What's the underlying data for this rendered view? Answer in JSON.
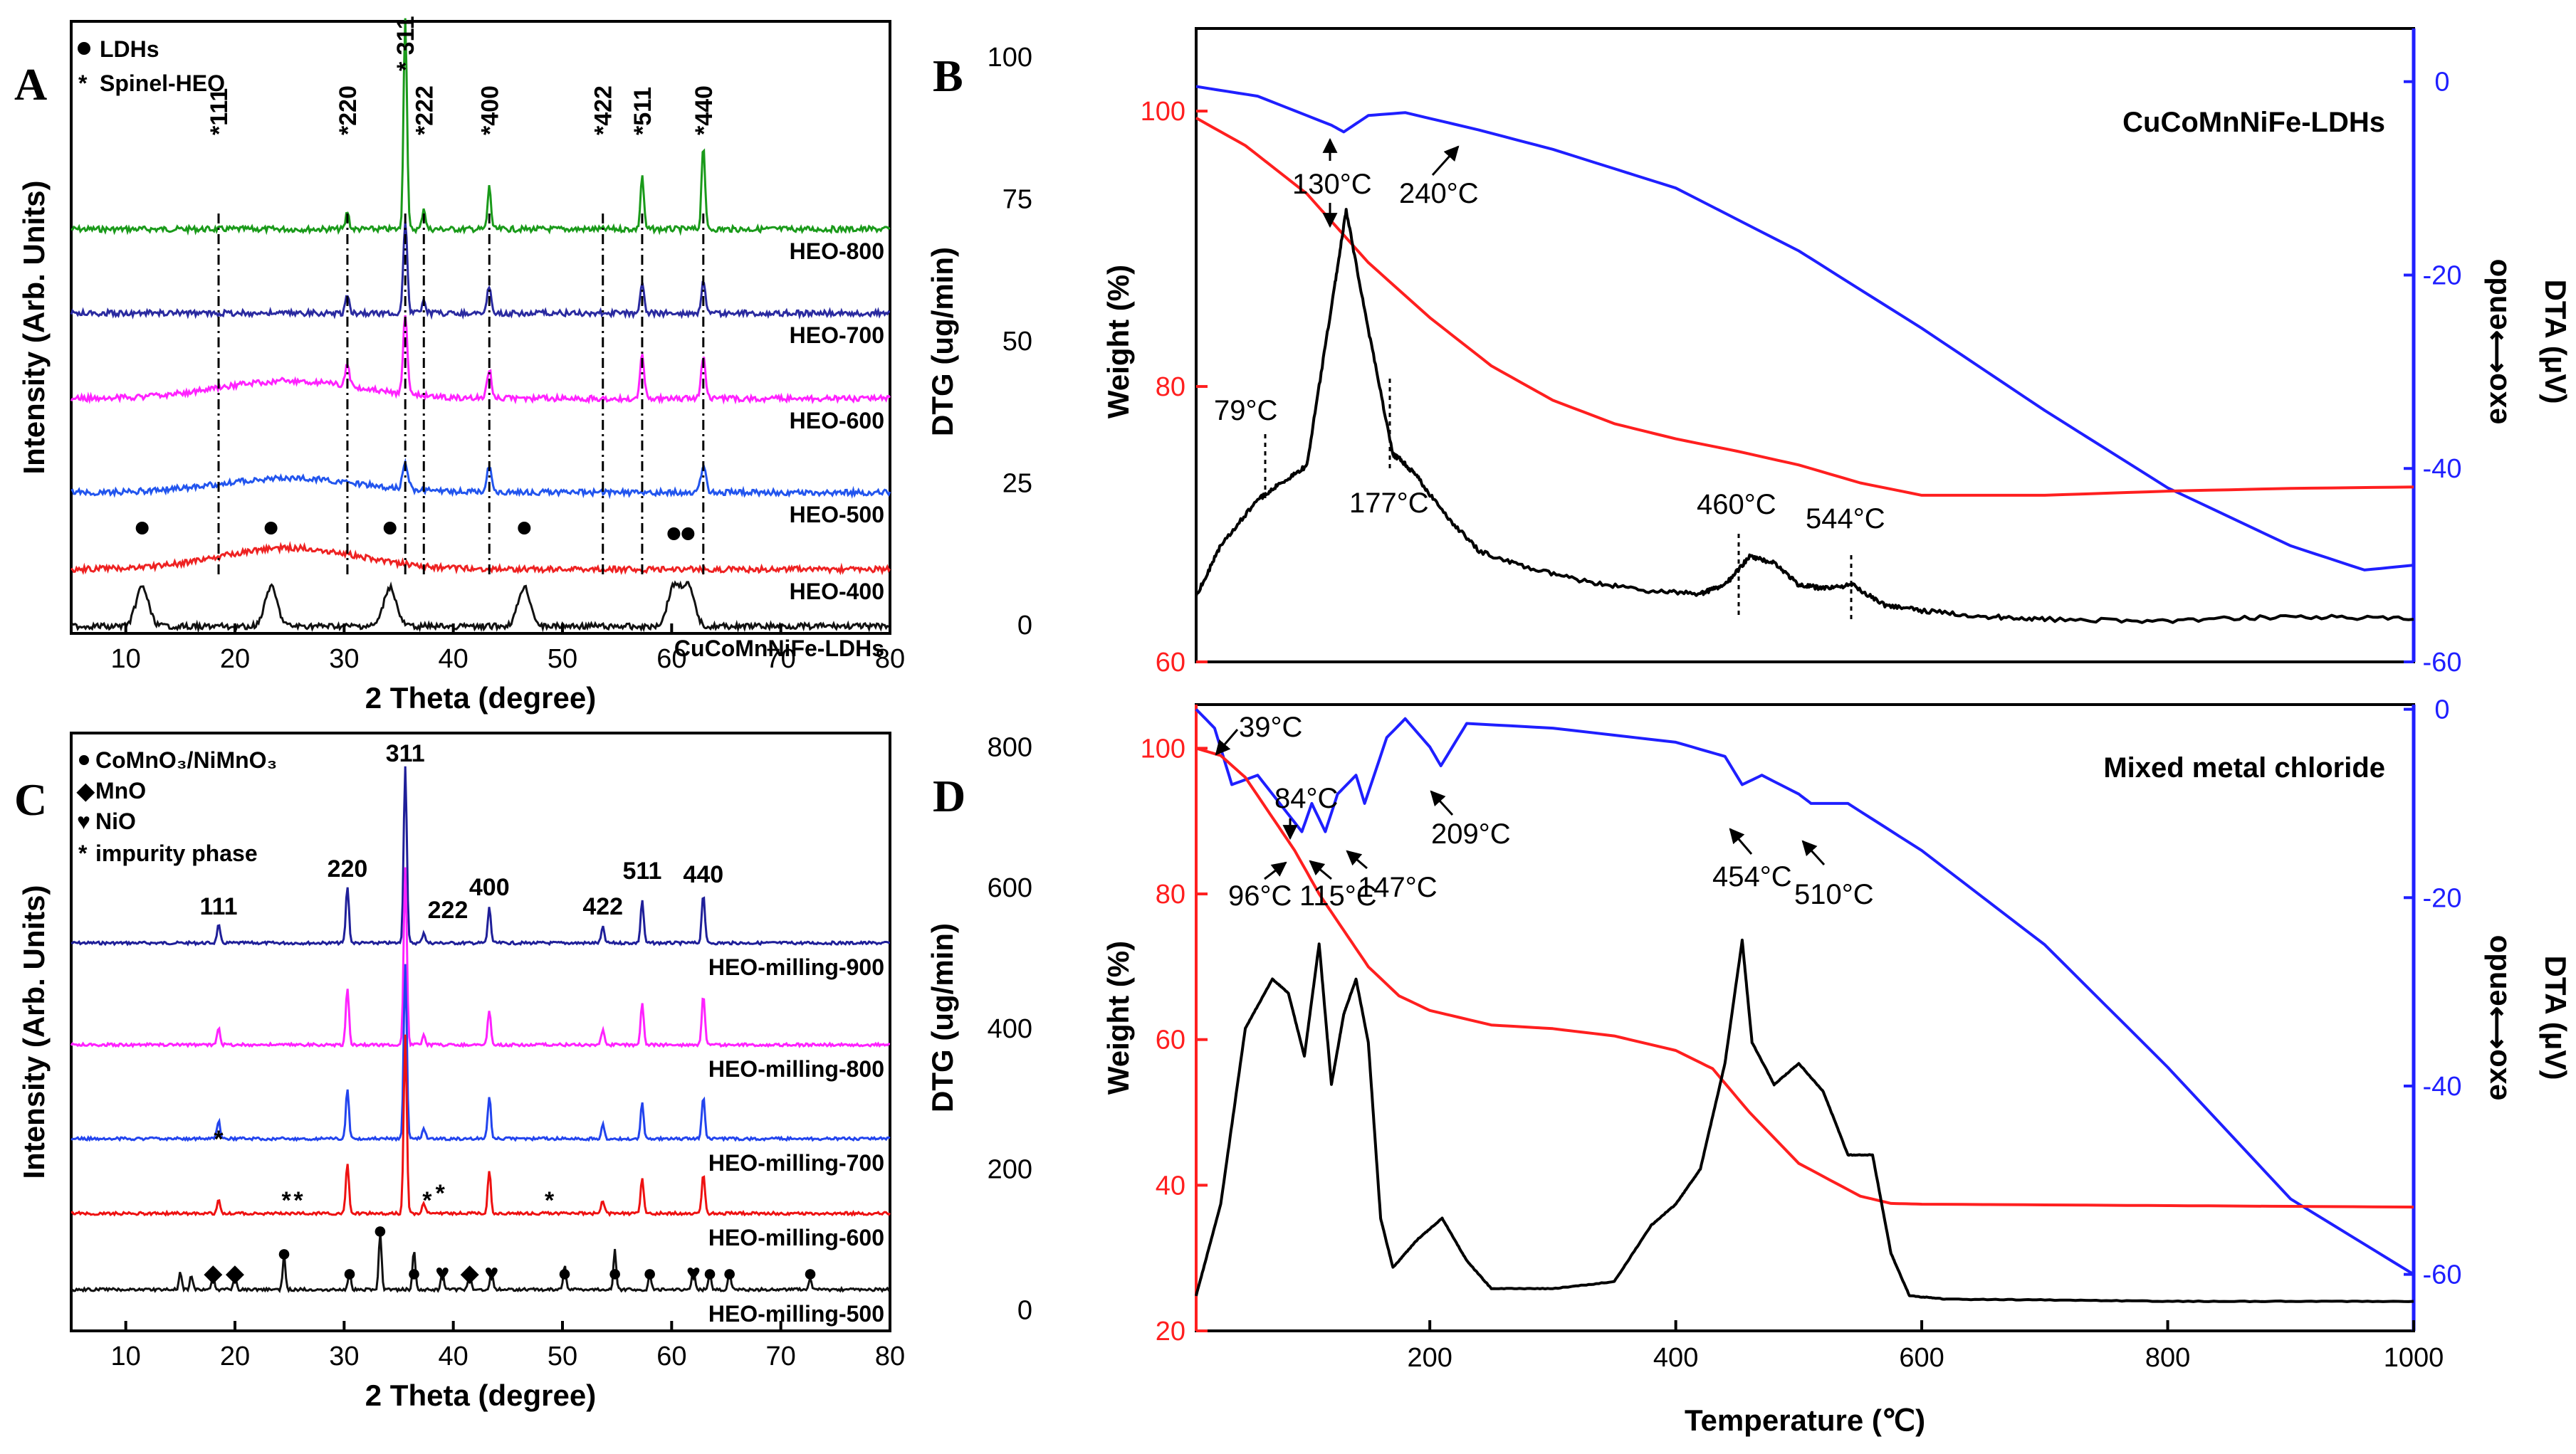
{
  "chart_data": [
    {
      "panel": "A",
      "type": "line",
      "xlabel": "2 Theta (degree)",
      "ylabel": "Intensity (Arb. Units)",
      "xlim": [
        5,
        80
      ],
      "xticks": [
        "10",
        "20",
        "30",
        "40",
        "50",
        "60",
        "70",
        "80"
      ],
      "legend": [
        {
          "marker": "●",
          "label": "LDHs"
        },
        {
          "marker": "*",
          "label": "Spinel-HEO"
        }
      ],
      "peaks": [
        {
          "label": "*111",
          "x": 18.5
        },
        {
          "label": "*220",
          "x": 30.3
        },
        {
          "label": "* 311",
          "x": 35.6
        },
        {
          "label": "*222",
          "x": 37.3
        },
        {
          "label": "*400",
          "x": 43.3
        },
        {
          "label": "*422",
          "x": 53.7
        },
        {
          "label": "*511",
          "x": 57.3
        },
        {
          "label": "*440",
          "x": 62.9
        }
      ],
      "series": [
        {
          "name": "HEO-800",
          "color": "#1a9a1a",
          "peaks": [
            30.3,
            35.6,
            37.3,
            43.3,
            57.3,
            62.9
          ]
        },
        {
          "name": "HEO-700",
          "color": "#2a2aa0",
          "peaks": [
            30.3,
            35.6,
            37.3,
            43.3,
            57.3,
            62.9
          ]
        },
        {
          "name": "HEO-600",
          "color": "#ff22ff",
          "peaks": [
            30.3,
            35.6,
            43.3,
            57.3,
            62.9
          ]
        },
        {
          "name": "HEO-500",
          "color": "#2255ee",
          "peaks": [
            35.6,
            43.3,
            62.9
          ]
        },
        {
          "name": "HEO-400",
          "color": "#ee2222",
          "peaks": []
        },
        {
          "name": "CuCoMnNiFe-LDHs",
          "color": "#111111",
          "peaks": [
            11.5,
            23.3,
            34.2,
            46.5,
            60.2,
            61.5
          ]
        }
      ]
    },
    {
      "panel": "B",
      "type": "line",
      "title": "CuCoMnNiFe-LDHs",
      "xlim": [
        10,
        1000
      ],
      "ylabel_dtg": "DTG (ug/min)",
      "ylabel_weight": "Weight (%)",
      "ylabel_dta": "DTA (μV)",
      "ylabel_dta2": "exo⟷endo",
      "dtg_ticks": [
        "0",
        "25",
        "50",
        "75",
        "100"
      ],
      "weight_ticks": [
        "60",
        "80",
        "100"
      ],
      "dta_ticks": [
        "0",
        "-20",
        "-40",
        "-60"
      ],
      "annotations": [
        "130°C",
        "240°C",
        "79°C",
        "177°C",
        "460°C",
        "544°C"
      ],
      "series": [
        {
          "name": "DTA",
          "color": "#1f1fff",
          "x": [
            10,
            60,
            120,
            130,
            150,
            180,
            240,
            300,
            400,
            500,
            600,
            700,
            800,
            900,
            960,
            1000
          ],
          "y": [
            -0.5,
            -1.5,
            -4.5,
            -5.2,
            -3.5,
            -3.2,
            -5,
            -7,
            -11,
            -17.5,
            -25.5,
            -34,
            -42,
            -48,
            -50.5,
            -50
          ]
        },
        {
          "name": "Weight",
          "color": "#ff1f1f",
          "x": [
            10,
            50,
            100,
            150,
            200,
            250,
            300,
            350,
            400,
            450,
            500,
            550,
            600,
            700,
            800,
            900,
            1000
          ],
          "y": [
            99.5,
            97.5,
            94,
            89,
            85,
            81.5,
            79,
            77.3,
            76.2,
            75.3,
            74.3,
            73,
            72.1,
            72.1,
            72.4,
            72.6,
            72.7
          ]
        },
        {
          "name": "DTG",
          "color": "#000000",
          "x": [
            10,
            30,
            60,
            79,
            100,
            120,
            132,
            150,
            170,
            177,
            190,
            210,
            240,
            280,
            330,
            380,
            420,
            440,
            460,
            480,
            500,
            520,
            544,
            570,
            600,
            650,
            700,
            800,
            900,
            1000
          ],
          "y": [
            5,
            14,
            22,
            25,
            28,
            56,
            73,
            52,
            30,
            29,
            26,
            20,
            13,
            10,
            7.5,
            6,
            5.5,
            7,
            12,
            11,
            7,
            6.5,
            7,
            3.5,
            2.5,
            1.5,
            1,
            0.7,
            1.5,
            1
          ]
        }
      ]
    },
    {
      "panel": "C",
      "type": "line",
      "xlabel": "2 Theta (degree)",
      "ylabel": "Intensity (Arb. Units)",
      "xlim": [
        5,
        80
      ],
      "xticks": [
        "10",
        "20",
        "30",
        "40",
        "50",
        "60",
        "70",
        "80"
      ],
      "legend": [
        {
          "marker": "●",
          "label": "CoMnO₃/NiMnO₃"
        },
        {
          "marker": "◆",
          "label": "MnO"
        },
        {
          "marker": "♥",
          "label": "NiO"
        },
        {
          "marker": "*",
          "label": "impurity phase"
        }
      ],
      "peak_labels": [
        "111",
        "220",
        "311",
        "222",
        "400",
        "422",
        "511",
        "440"
      ],
      "series": [
        {
          "name": "HEO-milling-900",
          "color": "#1f1f99",
          "peaks": [
            18.5,
            30.3,
            35.6,
            37.3,
            43.3,
            53.7,
            57.3,
            62.9
          ]
        },
        {
          "name": "HEO-milling-800",
          "color": "#ff22ff",
          "peaks": [
            18.5,
            30.3,
            35.6,
            37.3,
            43.3,
            53.7,
            57.3,
            62.9
          ]
        },
        {
          "name": "HEO-milling-700",
          "color": "#2244ee",
          "peaks": [
            18.5,
            30.3,
            35.6,
            37.3,
            43.3,
            53.7,
            57.3,
            62.9
          ]
        },
        {
          "name": "HEO-milling-600",
          "color": "#ee1111",
          "peaks": [
            18.5,
            30.3,
            35.6,
            37.3,
            43.3,
            53.7,
            57.3,
            62.9
          ]
        },
        {
          "name": "HEO-milling-500",
          "color": "#111111",
          "peaks": [
            15,
            16,
            18,
            20,
            24.5,
            30.5,
            33.3,
            36.4,
            39,
            41.5,
            43.5,
            50.2,
            54.8,
            58,
            62,
            63.5,
            65.3,
            72.7
          ]
        }
      ]
    },
    {
      "panel": "D",
      "type": "line",
      "title": "Mixed metal chloride",
      "xlabel": "Temperature (℃)",
      "xlim": [
        10,
        1000
      ],
      "xticks": [
        "200",
        "400",
        "600",
        "800",
        "1000"
      ],
      "ylabel_dtg": "DTG (ug/min)",
      "ylabel_weight": "Weight (%)",
      "ylabel_dta": "DTA (μV)",
      "ylabel_dta2": "exo⟷endo",
      "dtg_ticks": [
        "0",
        "200",
        "400",
        "600",
        "800"
      ],
      "weight_ticks": [
        "20",
        "40",
        "60",
        "80",
        "100"
      ],
      "dta_ticks": [
        "0",
        "-20",
        "-40",
        "-60"
      ],
      "annotations": [
        "39°C",
        "84°C",
        "96°C",
        "115°C",
        "147°C",
        "209°C",
        "454°C",
        "510°C"
      ],
      "series": [
        {
          "name": "DTA",
          "color": "#1f1fff",
          "x": [
            10,
            25,
            39,
            60,
            84,
            96,
            104,
            115,
            125,
            140,
            147,
            165,
            180,
            200,
            209,
            230,
            300,
            400,
            440,
            454,
            470,
            500,
            510,
            540,
            600,
            700,
            800,
            900,
            1000
          ],
          "y": [
            0,
            -2,
            -8,
            -7,
            -11,
            -13,
            -10,
            -13,
            -9,
            -7,
            -10,
            -3,
            -1,
            -4,
            -6,
            -1.5,
            -2,
            -3.5,
            -5,
            -8,
            -7,
            -9,
            -10,
            -10,
            -15,
            -25,
            -38,
            -52,
            -60
          ]
        },
        {
          "name": "Weight",
          "color": "#ff1f1f",
          "x": [
            10,
            30,
            50,
            70,
            90,
            110,
            130,
            150,
            175,
            200,
            250,
            300,
            350,
            400,
            430,
            460,
            500,
            550,
            575,
            600,
            700,
            800,
            900,
            1000
          ],
          "y": [
            100,
            99,
            96,
            91,
            86,
            80,
            75,
            70,
            66,
            64,
            62,
            61.5,
            60.5,
            58.5,
            56,
            50,
            43,
            38.5,
            37.5,
            37.4,
            37.3,
            37.2,
            37.1,
            37
          ]
        },
        {
          "name": "DTG",
          "color": "#000000",
          "x": [
            10,
            30,
            50,
            72,
            85,
            98,
            110,
            120,
            130,
            140,
            150,
            160,
            170,
            190,
            210,
            230,
            250,
            300,
            350,
            380,
            400,
            420,
            440,
            454,
            462,
            480,
            500,
            520,
            540,
            560,
            575,
            590,
            620,
            700,
            800,
            900,
            1000
          ],
          "y": [
            20,
            150,
            400,
            470,
            450,
            360,
            520,
            320,
            420,
            470,
            380,
            130,
            60,
            100,
            130,
            70,
            30,
            30,
            40,
            120,
            150,
            200,
            350,
            525,
            380,
            320,
            350,
            310,
            220,
            220,
            80,
            20,
            15,
            14,
            12,
            12,
            12
          ]
        }
      ]
    }
  ]
}
